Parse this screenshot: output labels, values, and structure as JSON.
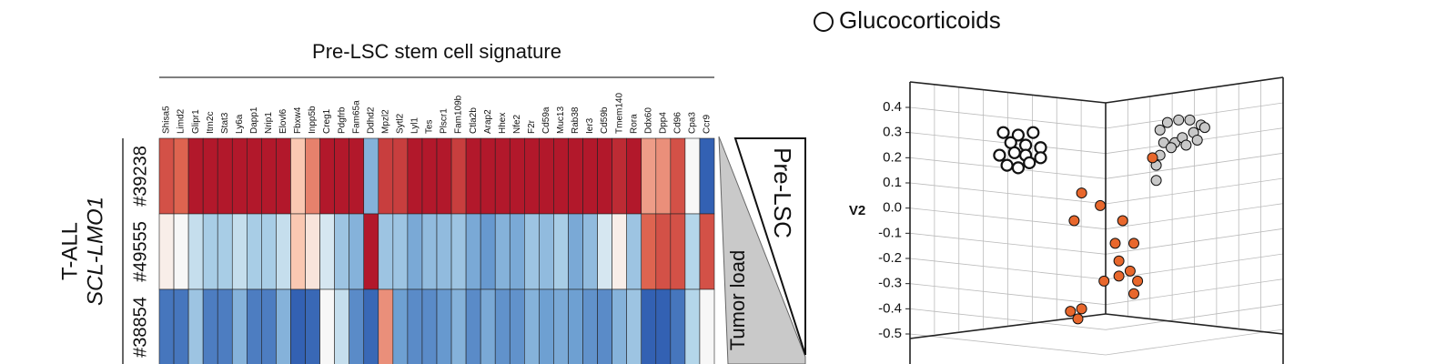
{
  "chart_data": [
    {
      "type": "heatmap",
      "title": "Pre-LSC stem cell signature",
      "columns": [
        "Shisa5",
        "Limd2",
        "Glipr1",
        "Itm2c",
        "Stat3",
        "Ly6a",
        "Dapp1",
        "Nrip1",
        "Elovl6",
        "Fbxw4",
        "Inpp5b",
        "Creg1",
        "Pdgfrb",
        "Fam65a",
        "Ddhd2",
        "Mpzl2",
        "Sytl2",
        "Lyl1",
        "Tes",
        "Plscr1",
        "Fam109b",
        "Ctla2b",
        "Arap2",
        "Hhex",
        "Nfe2",
        "F2r",
        "Cd59a",
        "Muc13",
        "Rab38",
        "Ier3",
        "Cd59b",
        "Tmem140",
        "Rora",
        "Ddx60",
        "Dpp4",
        "Cd96",
        "Cpa3",
        "Ccr9"
      ],
      "rows": [
        "#39238",
        "#49555",
        "#38854"
      ],
      "row_group_labels": [
        "T-ALL",
        "SCL-LMO1"
      ],
      "annotations": [
        "Pre-LSC",
        "Tumor load"
      ],
      "vlim": [
        -2,
        2
      ],
      "values": [
        [
          1.4,
          1.2,
          2,
          2,
          2,
          2,
          2,
          2,
          2,
          0.5,
          1.0,
          2,
          2,
          2,
          -0.8,
          1.6,
          1.6,
          2,
          2,
          2,
          1.6,
          2,
          2,
          2,
          2,
          2,
          2,
          2,
          2,
          2,
          2,
          1.8,
          2,
          0.8,
          0.9,
          1.4,
          0,
          -1.9
        ],
        [
          0.1,
          0,
          -0.3,
          -0.5,
          -0.5,
          -0.3,
          -0.5,
          -0.5,
          -0.3,
          0.5,
          0.2,
          -0.2,
          -0.6,
          -0.8,
          2,
          -0.6,
          -0.6,
          -0.9,
          -0.7,
          -0.7,
          -0.6,
          -0.9,
          -1.1,
          -0.8,
          -0.9,
          -0.6,
          -0.7,
          -0.5,
          -0.9,
          -0.7,
          -0.2,
          0.1,
          -0.6,
          1.2,
          1.4,
          1.4,
          -0.4,
          1.4
        ],
        [
          -1.6,
          -1.6,
          -0.6,
          -1.5,
          -1.5,
          -0.8,
          -1.5,
          -1.5,
          -0.8,
          -1.9,
          -1.8,
          0,
          -0.3,
          -1.3,
          -1.8,
          0.9,
          -1.0,
          -1.3,
          -1.3,
          -1.1,
          -0.8,
          -1.3,
          -0.9,
          -1.2,
          -1.2,
          -0.8,
          -1.0,
          -0.9,
          -1.0,
          -1.2,
          -1.3,
          -0.8,
          -0.6,
          -1.9,
          -1.9,
          -1.6,
          -0.4,
          0
        ]
      ]
    },
    {
      "type": "scatter",
      "y_label": "V2",
      "ylim": [
        -0.5,
        0.4
      ],
      "xlim": [
        0,
        1
      ],
      "yticks": [
        0.4,
        0.3,
        0.2,
        0.1,
        {
          "value": 0,
          "label": "0.0"
        },
        -0.1,
        -0.2,
        -0.3,
        -0.4,
        -0.5
      ],
      "series": [
        {
          "name": "Glucocorticoids",
          "color": "#ffffff",
          "x": [
            0.25,
            0.29,
            0.33,
            0.27,
            0.31,
            0.35,
            0.24,
            0.28,
            0.31,
            0.35,
            0.26,
            0.29,
            0.32
          ],
          "values": [
            0.3,
            0.29,
            0.3,
            0.26,
            0.25,
            0.24,
            0.21,
            0.22,
            0.21,
            0.2,
            0.17,
            0.16,
            0.18
          ]
        },
        {
          "color": "#c8c8c8",
          "x": [
            0.67,
            0.69,
            0.72,
            0.75,
            0.78,
            0.68,
            0.71,
            0.73,
            0.76,
            0.79,
            0.7,
            0.74,
            0.77,
            0.67,
            0.66,
            0.66
          ],
          "values": [
            0.31,
            0.34,
            0.35,
            0.35,
            0.33,
            0.26,
            0.26,
            0.28,
            0.3,
            0.32,
            0.24,
            0.25,
            0.27,
            0.21,
            0.17,
            0.11
          ]
        },
        {
          "color": "#e8672c",
          "x": [
            0.65,
            0.46,
            0.51,
            0.44,
            0.57,
            0.55,
            0.6,
            0.56,
            0.56,
            0.59,
            0.61,
            0.52,
            0.6,
            0.46,
            0.43,
            0.45
          ],
          "values": [
            0.2,
            0.06,
            0.01,
            -0.05,
            -0.05,
            -0.14,
            -0.14,
            -0.21,
            -0.27,
            -0.25,
            -0.29,
            -0.29,
            -0.34,
            -0.4,
            -0.41,
            -0.44
          ]
        }
      ]
    }
  ]
}
